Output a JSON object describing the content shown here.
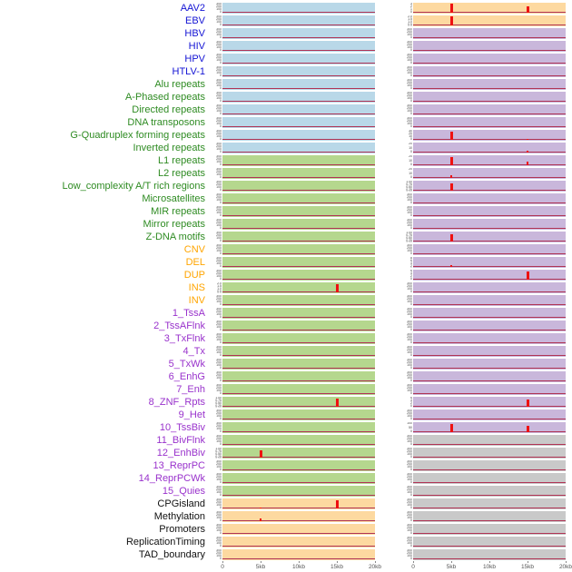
{
  "chart_data": {
    "type": "line",
    "layout": "small-multiples: 44 genomic-feature tracks x 2 panel columns, signal vs position",
    "x_axis": {
      "range_kb": [
        0,
        20
      ],
      "ticks": [
        "0",
        "5kb",
        "10kb",
        "15kb",
        "20kb"
      ]
    },
    "palette": {
      "label_colors": {
        "blue": "#1414D4",
        "green": "#2E8B22",
        "orange": "#FFA500",
        "purple": "#9932CC",
        "black": "#111111"
      },
      "panel_colors": {
        "lightblue": "#B9D8E8",
        "lightgreen": "#B5D78E",
        "peach": "#FDD9A0",
        "lavender": "#C9B7DB",
        "gray": "#C9C9C9"
      },
      "spike_color": "#EE1111",
      "baseline_color": "#B03455",
      "axis_text_color": "#555555"
    },
    "tick_sets": {
      "c4": [
        "300",
        "200",
        "100",
        "0"
      ],
      "s3": [
        "3",
        "2",
        "1",
        "0"
      ],
      "dec2": [
        "2.0",
        "1.5",
        "1.0",
        "0.5",
        "0.0"
      ],
      "dec1": [
        "1.00",
        "0.75",
        "0.50",
        "0.25",
        "0.00"
      ],
      "t30": [
        "30",
        "20",
        "10",
        "0"
      ],
      "t20": [
        "20",
        "10",
        "0"
      ],
      "e8": [
        "8",
        "6",
        "4",
        "2",
        "0"
      ],
      "e6": [
        "6",
        "4",
        "2",
        "0"
      ],
      "h100": [
        "100",
        "50",
        "0"
      ]
    },
    "rows": [
      {
        "label": "AAV2",
        "color": "blue",
        "left": {
          "bg": "lightblue",
          "ticks": "c4",
          "spikes": []
        },
        "right": {
          "bg": "peach",
          "ticks": "s3",
          "spikes": [
            {
              "x": 5,
              "h": 0.93
            },
            {
              "x": 15,
              "h": 0.68
            }
          ]
        }
      },
      {
        "label": "EBV",
        "color": "blue",
        "left": {
          "bg": "lightblue",
          "ticks": "c4",
          "spikes": []
        },
        "right": {
          "bg": "peach",
          "ticks": "dec2",
          "spikes": [
            {
              "x": 5,
              "h": 0.95
            }
          ]
        }
      },
      {
        "label": "HBV",
        "color": "blue",
        "left": {
          "bg": "lightblue",
          "ticks": "c4",
          "spikes": []
        },
        "right": {
          "bg": "lavender",
          "ticks": "c4",
          "spikes": []
        }
      },
      {
        "label": "HIV",
        "color": "blue",
        "left": {
          "bg": "lightblue",
          "ticks": "c4",
          "spikes": []
        },
        "right": {
          "bg": "lavender",
          "ticks": "c4",
          "spikes": []
        }
      },
      {
        "label": "HPV",
        "color": "blue",
        "left": {
          "bg": "lightblue",
          "ticks": "c4",
          "spikes": []
        },
        "right": {
          "bg": "lavender",
          "ticks": "c4",
          "spikes": []
        }
      },
      {
        "label": "HTLV-1",
        "color": "blue",
        "left": {
          "bg": "lightblue",
          "ticks": "c4",
          "spikes": []
        },
        "right": {
          "bg": "lavender",
          "ticks": "c4",
          "spikes": []
        }
      },
      {
        "label": "Alu repeats",
        "color": "green",
        "left": {
          "bg": "lightblue",
          "ticks": "c4",
          "spikes": []
        },
        "right": {
          "bg": "lavender",
          "ticks": "c4",
          "spikes": []
        }
      },
      {
        "label": "A-Phased repeats",
        "color": "green",
        "left": {
          "bg": "lightblue",
          "ticks": "c4",
          "spikes": []
        },
        "right": {
          "bg": "lavender",
          "ticks": "c4",
          "spikes": []
        }
      },
      {
        "label": "Directed repeats",
        "color": "green",
        "left": {
          "bg": "lightblue",
          "ticks": "c4",
          "spikes": []
        },
        "right": {
          "bg": "lavender",
          "ticks": "c4",
          "spikes": []
        }
      },
      {
        "label": "DNA transposons",
        "color": "green",
        "left": {
          "bg": "lightblue",
          "ticks": "c4",
          "spikes": []
        },
        "right": {
          "bg": "lavender",
          "ticks": "c4",
          "spikes": []
        }
      },
      {
        "label": "G-Quadruplex forming repeats",
        "color": "green",
        "left": {
          "bg": "lightblue",
          "ticks": "c4",
          "spikes": []
        },
        "right": {
          "bg": "lavender",
          "ticks": "t30",
          "spikes": [
            {
              "x": 5,
              "h": 0.85
            },
            {
              "x": 15,
              "h": 0.1
            }
          ]
        }
      },
      {
        "label": "Inverted repeats",
        "color": "green",
        "left": {
          "bg": "lightblue",
          "ticks": "c4",
          "spikes": []
        },
        "right": {
          "bg": "lavender",
          "ticks": "t20",
          "spikes": [
            {
              "x": 15,
              "h": 0.18
            }
          ]
        }
      },
      {
        "label": "L1 repeats",
        "color": "green",
        "left": {
          "bg": "lightgreen",
          "ticks": "c4",
          "spikes": []
        },
        "right": {
          "bg": "lavender",
          "ticks": "t20",
          "spikes": [
            {
              "x": 5,
              "h": 0.85
            },
            {
              "x": 15,
              "h": 0.4
            }
          ]
        }
      },
      {
        "label": "L2 repeats",
        "color": "green",
        "left": {
          "bg": "lightgreen",
          "ticks": "c4",
          "spikes": []
        },
        "right": {
          "bg": "lavender",
          "ticks": "t20",
          "spikes": [
            {
              "x": 5,
              "h": 0.3
            }
          ]
        }
      },
      {
        "label": "Low_complexity A/T rich regions",
        "color": "green",
        "left": {
          "bg": "lightgreen",
          "ticks": "c4",
          "spikes": []
        },
        "right": {
          "bg": "lavender",
          "ticks": "dec1",
          "spikes": [
            {
              "x": 5,
              "h": 0.8
            }
          ]
        }
      },
      {
        "label": "Microsatellites",
        "color": "green",
        "left": {
          "bg": "lightgreen",
          "ticks": "c4",
          "spikes": []
        },
        "right": {
          "bg": "lavender",
          "ticks": "c4",
          "spikes": []
        }
      },
      {
        "label": "MIR repeats",
        "color": "green",
        "left": {
          "bg": "lightgreen",
          "ticks": "c4",
          "spikes": []
        },
        "right": {
          "bg": "lavender",
          "ticks": "c4",
          "spikes": []
        }
      },
      {
        "label": "Mirror repeats",
        "color": "green",
        "left": {
          "bg": "lightgreen",
          "ticks": "c4",
          "spikes": []
        },
        "right": {
          "bg": "lavender",
          "ticks": "c4",
          "spikes": []
        }
      },
      {
        "label": "Z-DNA motifs",
        "color": "green",
        "left": {
          "bg": "lightgreen",
          "ticks": "c4",
          "spikes": []
        },
        "right": {
          "bg": "lavender",
          "ticks": "dec1",
          "spikes": [
            {
              "x": 5,
              "h": 0.75
            }
          ]
        }
      },
      {
        "label": "CNV",
        "color": "orange",
        "left": {
          "bg": "lightgreen",
          "ticks": "c4",
          "spikes": []
        },
        "right": {
          "bg": "lavender",
          "ticks": "c4",
          "spikes": []
        }
      },
      {
        "label": "DEL",
        "color": "orange",
        "left": {
          "bg": "lightgreen",
          "ticks": "c4",
          "spikes": []
        },
        "right": {
          "bg": "lavender",
          "ticks": "e8",
          "spikes": [
            {
              "x": 5,
              "h": 0.18
            }
          ]
        }
      },
      {
        "label": "DUP",
        "color": "orange",
        "left": {
          "bg": "lightgreen",
          "ticks": "c4",
          "spikes": []
        },
        "right": {
          "bg": "lavender",
          "ticks": "e6",
          "spikes": [
            {
              "x": 15,
              "h": 0.85
            }
          ]
        }
      },
      {
        "label": "INS",
        "color": "orange",
        "left": {
          "bg": "lightgreen",
          "ticks": "dec2",
          "spikes": [
            {
              "x": 15,
              "h": 0.88
            }
          ]
        },
        "right": {
          "bg": "lavender",
          "ticks": "c4",
          "spikes": []
        }
      },
      {
        "label": "INV",
        "color": "orange",
        "left": {
          "bg": "lightgreen",
          "ticks": "c4",
          "spikes": []
        },
        "right": {
          "bg": "lavender",
          "ticks": "c4",
          "spikes": []
        }
      },
      {
        "label": "1_TssA",
        "color": "purple",
        "left": {
          "bg": "lightgreen",
          "ticks": "c4",
          "spikes": []
        },
        "right": {
          "bg": "lavender",
          "ticks": "c4",
          "spikes": []
        }
      },
      {
        "label": "2_TssAFlnk",
        "color": "purple",
        "left": {
          "bg": "lightgreen",
          "ticks": "c4",
          "spikes": []
        },
        "right": {
          "bg": "lavender",
          "ticks": "c4",
          "spikes": []
        }
      },
      {
        "label": "3_TxFlnk",
        "color": "purple",
        "left": {
          "bg": "lightgreen",
          "ticks": "c4",
          "spikes": []
        },
        "right": {
          "bg": "lavender",
          "ticks": "c4",
          "spikes": []
        }
      },
      {
        "label": "4_Tx",
        "color": "purple",
        "left": {
          "bg": "lightgreen",
          "ticks": "c4",
          "spikes": []
        },
        "right": {
          "bg": "lavender",
          "ticks": "c4",
          "spikes": []
        }
      },
      {
        "label": "5_TxWk",
        "color": "purple",
        "left": {
          "bg": "lightgreen",
          "ticks": "c4",
          "spikes": []
        },
        "right": {
          "bg": "lavender",
          "ticks": "c4",
          "spikes": []
        }
      },
      {
        "label": "6_EnhG",
        "color": "purple",
        "left": {
          "bg": "lightgreen",
          "ticks": "c4",
          "spikes": []
        },
        "right": {
          "bg": "lavender",
          "ticks": "c4",
          "spikes": []
        }
      },
      {
        "label": "7_Enh",
        "color": "purple",
        "left": {
          "bg": "lightgreen",
          "ticks": "c4",
          "spikes": []
        },
        "right": {
          "bg": "lavender",
          "ticks": "c4",
          "spikes": []
        }
      },
      {
        "label": "8_ZNF_Rpts",
        "color": "purple",
        "left": {
          "bg": "lightgreen",
          "ticks": "dec1",
          "spikes": [
            {
              "x": 15,
              "h": 0.82
            }
          ]
        },
        "right": {
          "bg": "lavender",
          "ticks": "e6",
          "spikes": [
            {
              "x": 15,
              "h": 0.8
            }
          ]
        }
      },
      {
        "label": "9_Het",
        "color": "purple",
        "left": {
          "bg": "lightgreen",
          "ticks": "c4",
          "spikes": []
        },
        "right": {
          "bg": "lavender",
          "ticks": "c4",
          "spikes": []
        }
      },
      {
        "label": "10_TssBiv",
        "color": "purple",
        "left": {
          "bg": "lightgreen",
          "ticks": "c4",
          "spikes": []
        },
        "right": {
          "bg": "lavender",
          "ticks": "h100",
          "spikes": [
            {
              "x": 5,
              "h": 0.85
            },
            {
              "x": 15,
              "h": 0.7
            }
          ]
        }
      },
      {
        "label": "11_BivFlnk",
        "color": "purple",
        "left": {
          "bg": "lightgreen",
          "ticks": "c4",
          "spikes": []
        },
        "right": {
          "bg": "gray",
          "ticks": "c4",
          "spikes": []
        }
      },
      {
        "label": "12_EnhBiv",
        "color": "purple",
        "left": {
          "bg": "lightgreen",
          "ticks": "dec1",
          "spikes": [
            {
              "x": 5,
              "h": 0.8
            }
          ]
        },
        "right": {
          "bg": "gray",
          "ticks": "c4",
          "spikes": []
        }
      },
      {
        "label": "13_ReprPC",
        "color": "purple",
        "left": {
          "bg": "lightgreen",
          "ticks": "c4",
          "spikes": []
        },
        "right": {
          "bg": "gray",
          "ticks": "c4",
          "spikes": []
        }
      },
      {
        "label": "14_ReprPCWk",
        "color": "purple",
        "left": {
          "bg": "lightgreen",
          "ticks": "c4",
          "spikes": []
        },
        "right": {
          "bg": "gray",
          "ticks": "c4",
          "spikes": []
        }
      },
      {
        "label": "15_Quies",
        "color": "purple",
        "left": {
          "bg": "lightgreen",
          "ticks": "c4",
          "spikes": []
        },
        "right": {
          "bg": "gray",
          "ticks": "c4",
          "spikes": []
        }
      },
      {
        "label": "CPGisland",
        "color": "black",
        "left": {
          "bg": "peach",
          "ticks": "c4",
          "spikes": [
            {
              "x": 5,
              "h": 0.12
            },
            {
              "x": 15,
              "h": 0.85
            }
          ]
        },
        "right": {
          "bg": "gray",
          "ticks": "c4",
          "spikes": []
        }
      },
      {
        "label": "Methylation",
        "color": "black",
        "left": {
          "bg": "peach",
          "ticks": "c4",
          "spikes": [
            {
              "x": 5,
              "h": 0.28
            }
          ]
        },
        "right": {
          "bg": "gray",
          "ticks": "c4",
          "spikes": []
        }
      },
      {
        "label": "Promoters",
        "color": "black",
        "left": {
          "bg": "peach",
          "ticks": "c4",
          "spikes": []
        },
        "right": {
          "bg": "gray",
          "ticks": "c4",
          "spikes": []
        }
      },
      {
        "label": "ReplicationTiming",
        "color": "black",
        "left": {
          "bg": "peach",
          "ticks": "c4",
          "spikes": []
        },
        "right": {
          "bg": "gray",
          "ticks": "c4",
          "spikes": []
        }
      },
      {
        "label": "TAD_boundary",
        "color": "black",
        "left": {
          "bg": "peach",
          "ticks": "c4",
          "spikes": []
        },
        "right": {
          "bg": "gray",
          "ticks": "c4",
          "spikes": []
        }
      }
    ]
  }
}
